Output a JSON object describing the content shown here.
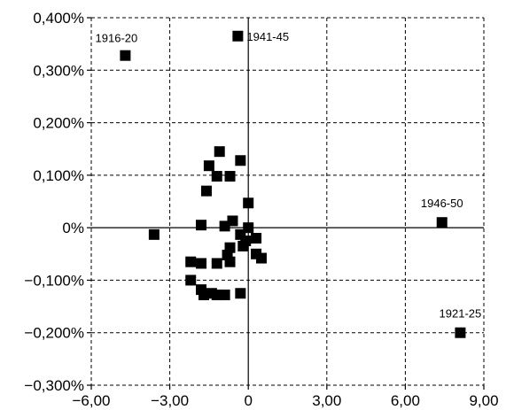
{
  "chart_data": {
    "type": "scatter",
    "title": "",
    "xlabel": "",
    "ylabel": "",
    "xlim": [
      -6,
      9
    ],
    "ylim": [
      -0.3,
      0.4
    ],
    "x_ticks": [
      -6,
      -3,
      0,
      3,
      6,
      9
    ],
    "y_ticks": [
      -0.3,
      -0.2,
      -0.1,
      0,
      0.1,
      0.2,
      0.3,
      0.4
    ],
    "x_tick_labels": [
      "−6,00",
      "−3,00",
      "0",
      "3,00",
      "6,00",
      "9,00"
    ],
    "y_tick_labels": [
      "−0,300%",
      "−0,200%",
      "−0,100%",
      "0%",
      "0,100%",
      "0,200%",
      "0,300%",
      "0,400%"
    ],
    "grid": true,
    "marker": "square",
    "series": [
      {
        "points": [
          {
            "x": -4.7,
            "y": 0.328,
            "label": "1916-20"
          },
          {
            "x": -0.4,
            "y": 0.365,
            "label": "1941-45"
          },
          {
            "x": 7.4,
            "y": 0.01,
            "label": "1946-50"
          },
          {
            "x": 8.1,
            "y": -0.2,
            "label": "1921-25"
          },
          {
            "x": -3.6,
            "y": -0.013
          },
          {
            "x": -1.1,
            "y": 0.145
          },
          {
            "x": -1.5,
            "y": 0.118
          },
          {
            "x": -1.2,
            "y": 0.098
          },
          {
            "x": -0.7,
            "y": 0.098
          },
          {
            "x": -0.3,
            "y": 0.128
          },
          {
            "x": -1.6,
            "y": 0.07
          },
          {
            "x": 0.0,
            "y": 0.047
          },
          {
            "x": -1.8,
            "y": 0.005
          },
          {
            "x": -0.6,
            "y": 0.013
          },
          {
            "x": -0.9,
            "y": 0.003
          },
          {
            "x": 0.0,
            "y": 0.0
          },
          {
            "x": -0.3,
            "y": -0.013
          },
          {
            "x": -0.1,
            "y": -0.025
          },
          {
            "x": 0.3,
            "y": -0.02
          },
          {
            "x": -0.2,
            "y": -0.035
          },
          {
            "x": -0.7,
            "y": -0.038
          },
          {
            "x": -0.8,
            "y": -0.052
          },
          {
            "x": -0.7,
            "y": -0.065
          },
          {
            "x": 0.3,
            "y": -0.05
          },
          {
            "x": 0.5,
            "y": -0.058
          },
          {
            "x": -2.2,
            "y": -0.065
          },
          {
            "x": -1.8,
            "y": -0.068
          },
          {
            "x": -1.2,
            "y": -0.068
          },
          {
            "x": -2.2,
            "y": -0.1
          },
          {
            "x": -1.8,
            "y": -0.118
          },
          {
            "x": -1.7,
            "y": -0.128
          },
          {
            "x": -1.4,
            "y": -0.125
          },
          {
            "x": -1.2,
            "y": -0.128
          },
          {
            "x": -0.9,
            "y": -0.128
          },
          {
            "x": -0.3,
            "y": -0.125
          }
        ]
      }
    ]
  }
}
